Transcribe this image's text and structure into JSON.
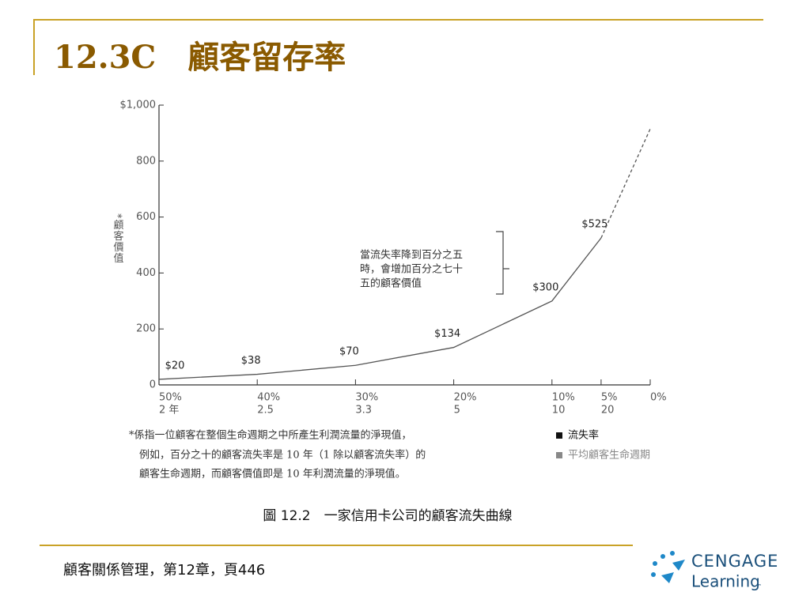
{
  "slide": {
    "title": "12.3C　顧客留存率",
    "footer": "顧客關係管理，第12章，頁446",
    "logo": {
      "name": "CENGAGE",
      "tagline": "Learning",
      "mark": "™"
    }
  },
  "chart_data": {
    "type": "line",
    "y_label": "*顧客價值",
    "xlim": [
      50,
      0
    ],
    "ylim": [
      0,
      1000
    ],
    "xticks": [
      {
        "value": 50,
        "label": "50%"
      },
      {
        "value": 40,
        "label": "40%"
      },
      {
        "value": 30,
        "label": "30%"
      },
      {
        "value": 20,
        "label": "20%"
      },
      {
        "value": 10,
        "label": "10%"
      },
      {
        "value": 5,
        "label": "5%"
      },
      {
        "value": 0,
        "label": "0%"
      }
    ],
    "x_lifetime_labels": [
      "2 年",
      "2.5",
      "3.3",
      "5",
      "10",
      "20"
    ],
    "yticks": [
      0,
      200,
      400,
      600,
      800,
      {
        "value": 1000,
        "label": "$1,000"
      }
    ],
    "series": [
      {
        "style": "solid",
        "color": "#555555",
        "x": [
          50,
          40,
          30,
          20,
          10,
          5
        ],
        "values": [
          20,
          38,
          70,
          134,
          300,
          525
        ],
        "value_labels": [
          "$20",
          "$38",
          "$70",
          "$134",
          "$300",
          "$525"
        ]
      },
      {
        "style": "dashed",
        "color": "#555555",
        "x": [
          5,
          0
        ],
        "values": [
          525,
          915
        ]
      }
    ],
    "annotation": [
      "當流失率降到百分之五",
      "時，會增加百分之七十",
      "五的顧客價值"
    ],
    "footnote": [
      "*係指一位顧客在整個生命週期之中所產生利潤流量的淨現值，",
      "例如，百分之十的顧客流失率是 10 年（1 除以顧客流失率）的",
      "顧客生命週期，而顧客價值即是 10 年利潤流量的淨現值。"
    ],
    "tick_legend": [
      {
        "name": "流失率",
        "color": "#111111"
      },
      {
        "name": "平均顧客生命週期",
        "color": "#888888"
      }
    ],
    "caption": "圖 12.2　一家信用卡公司的顧客流失曲線"
  }
}
